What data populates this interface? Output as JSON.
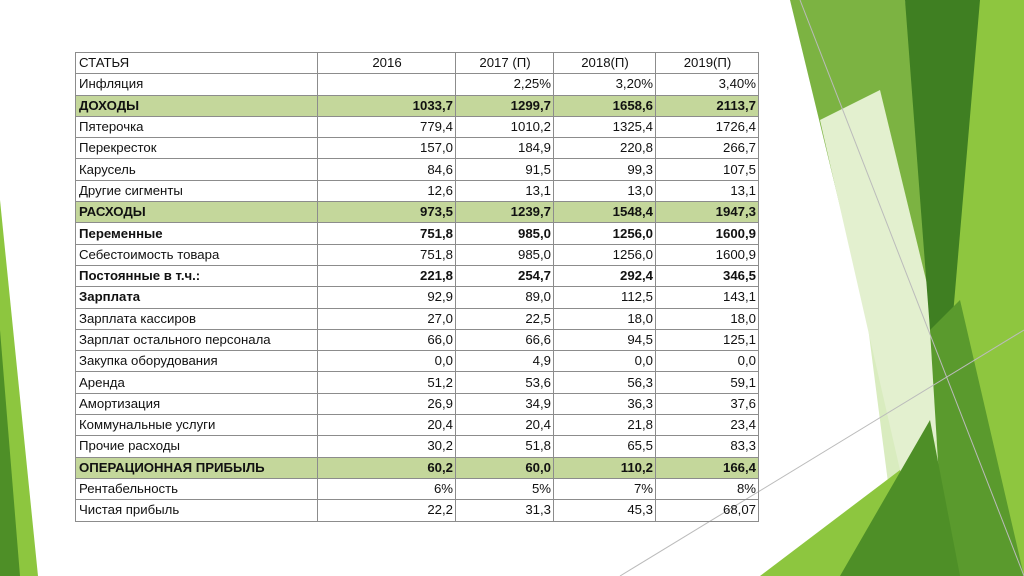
{
  "table": {
    "headers": [
      "СТАТЬЯ",
      "2016",
      "2017 (П)",
      "2018(П)",
      "2019(П)"
    ],
    "rows": [
      {
        "label": "Инфляция",
        "values": [
          "",
          "2,25%",
          "3,20%",
          "3,40%"
        ],
        "style": "normal"
      },
      {
        "label": "ДОХОДЫ",
        "values": [
          "1033,7",
          "1299,7",
          "1658,6",
          "2113,7"
        ],
        "style": "highlight"
      },
      {
        "label": "Пятерочка",
        "values": [
          "779,4",
          "1010,2",
          "1325,4",
          "1726,4"
        ],
        "style": "normal"
      },
      {
        "label": "Перекресток",
        "values": [
          "157,0",
          "184,9",
          "220,8",
          "266,7"
        ],
        "style": "normal"
      },
      {
        "label": "Карусель",
        "values": [
          "84,6",
          "91,5",
          "99,3",
          "107,5"
        ],
        "style": "normal"
      },
      {
        "label": "Другие сигменты",
        "values": [
          "12,6",
          "13,1",
          "13,0",
          "13,1"
        ],
        "style": "normal"
      },
      {
        "label": "РАСХОДЫ",
        "values": [
          "973,5",
          "1239,7",
          "1548,4",
          "1947,3"
        ],
        "style": "highlight"
      },
      {
        "label": "Переменные",
        "values": [
          "751,8",
          "985,0",
          "1256,0",
          "1600,9"
        ],
        "style": "bold"
      },
      {
        "label": "Себестоимость товара",
        "values": [
          "751,8",
          "985,0",
          "1256,0",
          "1600,9"
        ],
        "style": "normal"
      },
      {
        "label": "Постоянные в т.ч.:",
        "values": [
          "221,8",
          "254,7",
          "292,4",
          "346,5"
        ],
        "style": "bold"
      },
      {
        "label": "Зарплата",
        "values": [
          "92,9",
          "89,0",
          "112,5",
          "143,1"
        ],
        "style": "bold-label"
      },
      {
        "label": "Зарплата кассиров",
        "values": [
          "27,0",
          "22,5",
          "18,0",
          "18,0"
        ],
        "style": "normal"
      },
      {
        "label": "Зарплат остального персонала",
        "values": [
          "66,0",
          "66,6",
          "94,5",
          "125,1"
        ],
        "style": "normal"
      },
      {
        "label": "Закупка оборудования",
        "values": [
          "0,0",
          "4,9",
          "0,0",
          "0,0"
        ],
        "style": "normal"
      },
      {
        "label": "Аренда",
        "values": [
          "51,2",
          "53,6",
          "56,3",
          "59,1"
        ],
        "style": "normal"
      },
      {
        "label": "Амортизация",
        "values": [
          "26,9",
          "34,9",
          "36,3",
          "37,6"
        ],
        "style": "normal"
      },
      {
        "label": "Коммунальные услуги",
        "values": [
          "20,4",
          "20,4",
          "21,8",
          "23,4"
        ],
        "style": "normal"
      },
      {
        "label": "Прочие расходы",
        "values": [
          "30,2",
          "51,8",
          "65,5",
          "83,3"
        ],
        "style": "normal"
      },
      {
        "label": "ОПЕРАЦИОННАЯ ПРИБЫЛЬ",
        "values": [
          "60,2",
          "60,0",
          "110,2",
          "166,4"
        ],
        "style": "highlight"
      },
      {
        "label": "Рентабельность",
        "values": [
          "6%",
          "5%",
          "7%",
          "8%"
        ],
        "style": "normal"
      },
      {
        "label": "Чистая прибыль",
        "values": [
          "22,2",
          "31,3",
          "45,3",
          "68,07"
        ],
        "style": "normal"
      }
    ]
  },
  "colors": {
    "highlight_row": "#c4d79b",
    "accent_dark_green": "#3d7a1e",
    "accent_lime": "#8dc63f",
    "accent_light": "#c6e39a"
  }
}
